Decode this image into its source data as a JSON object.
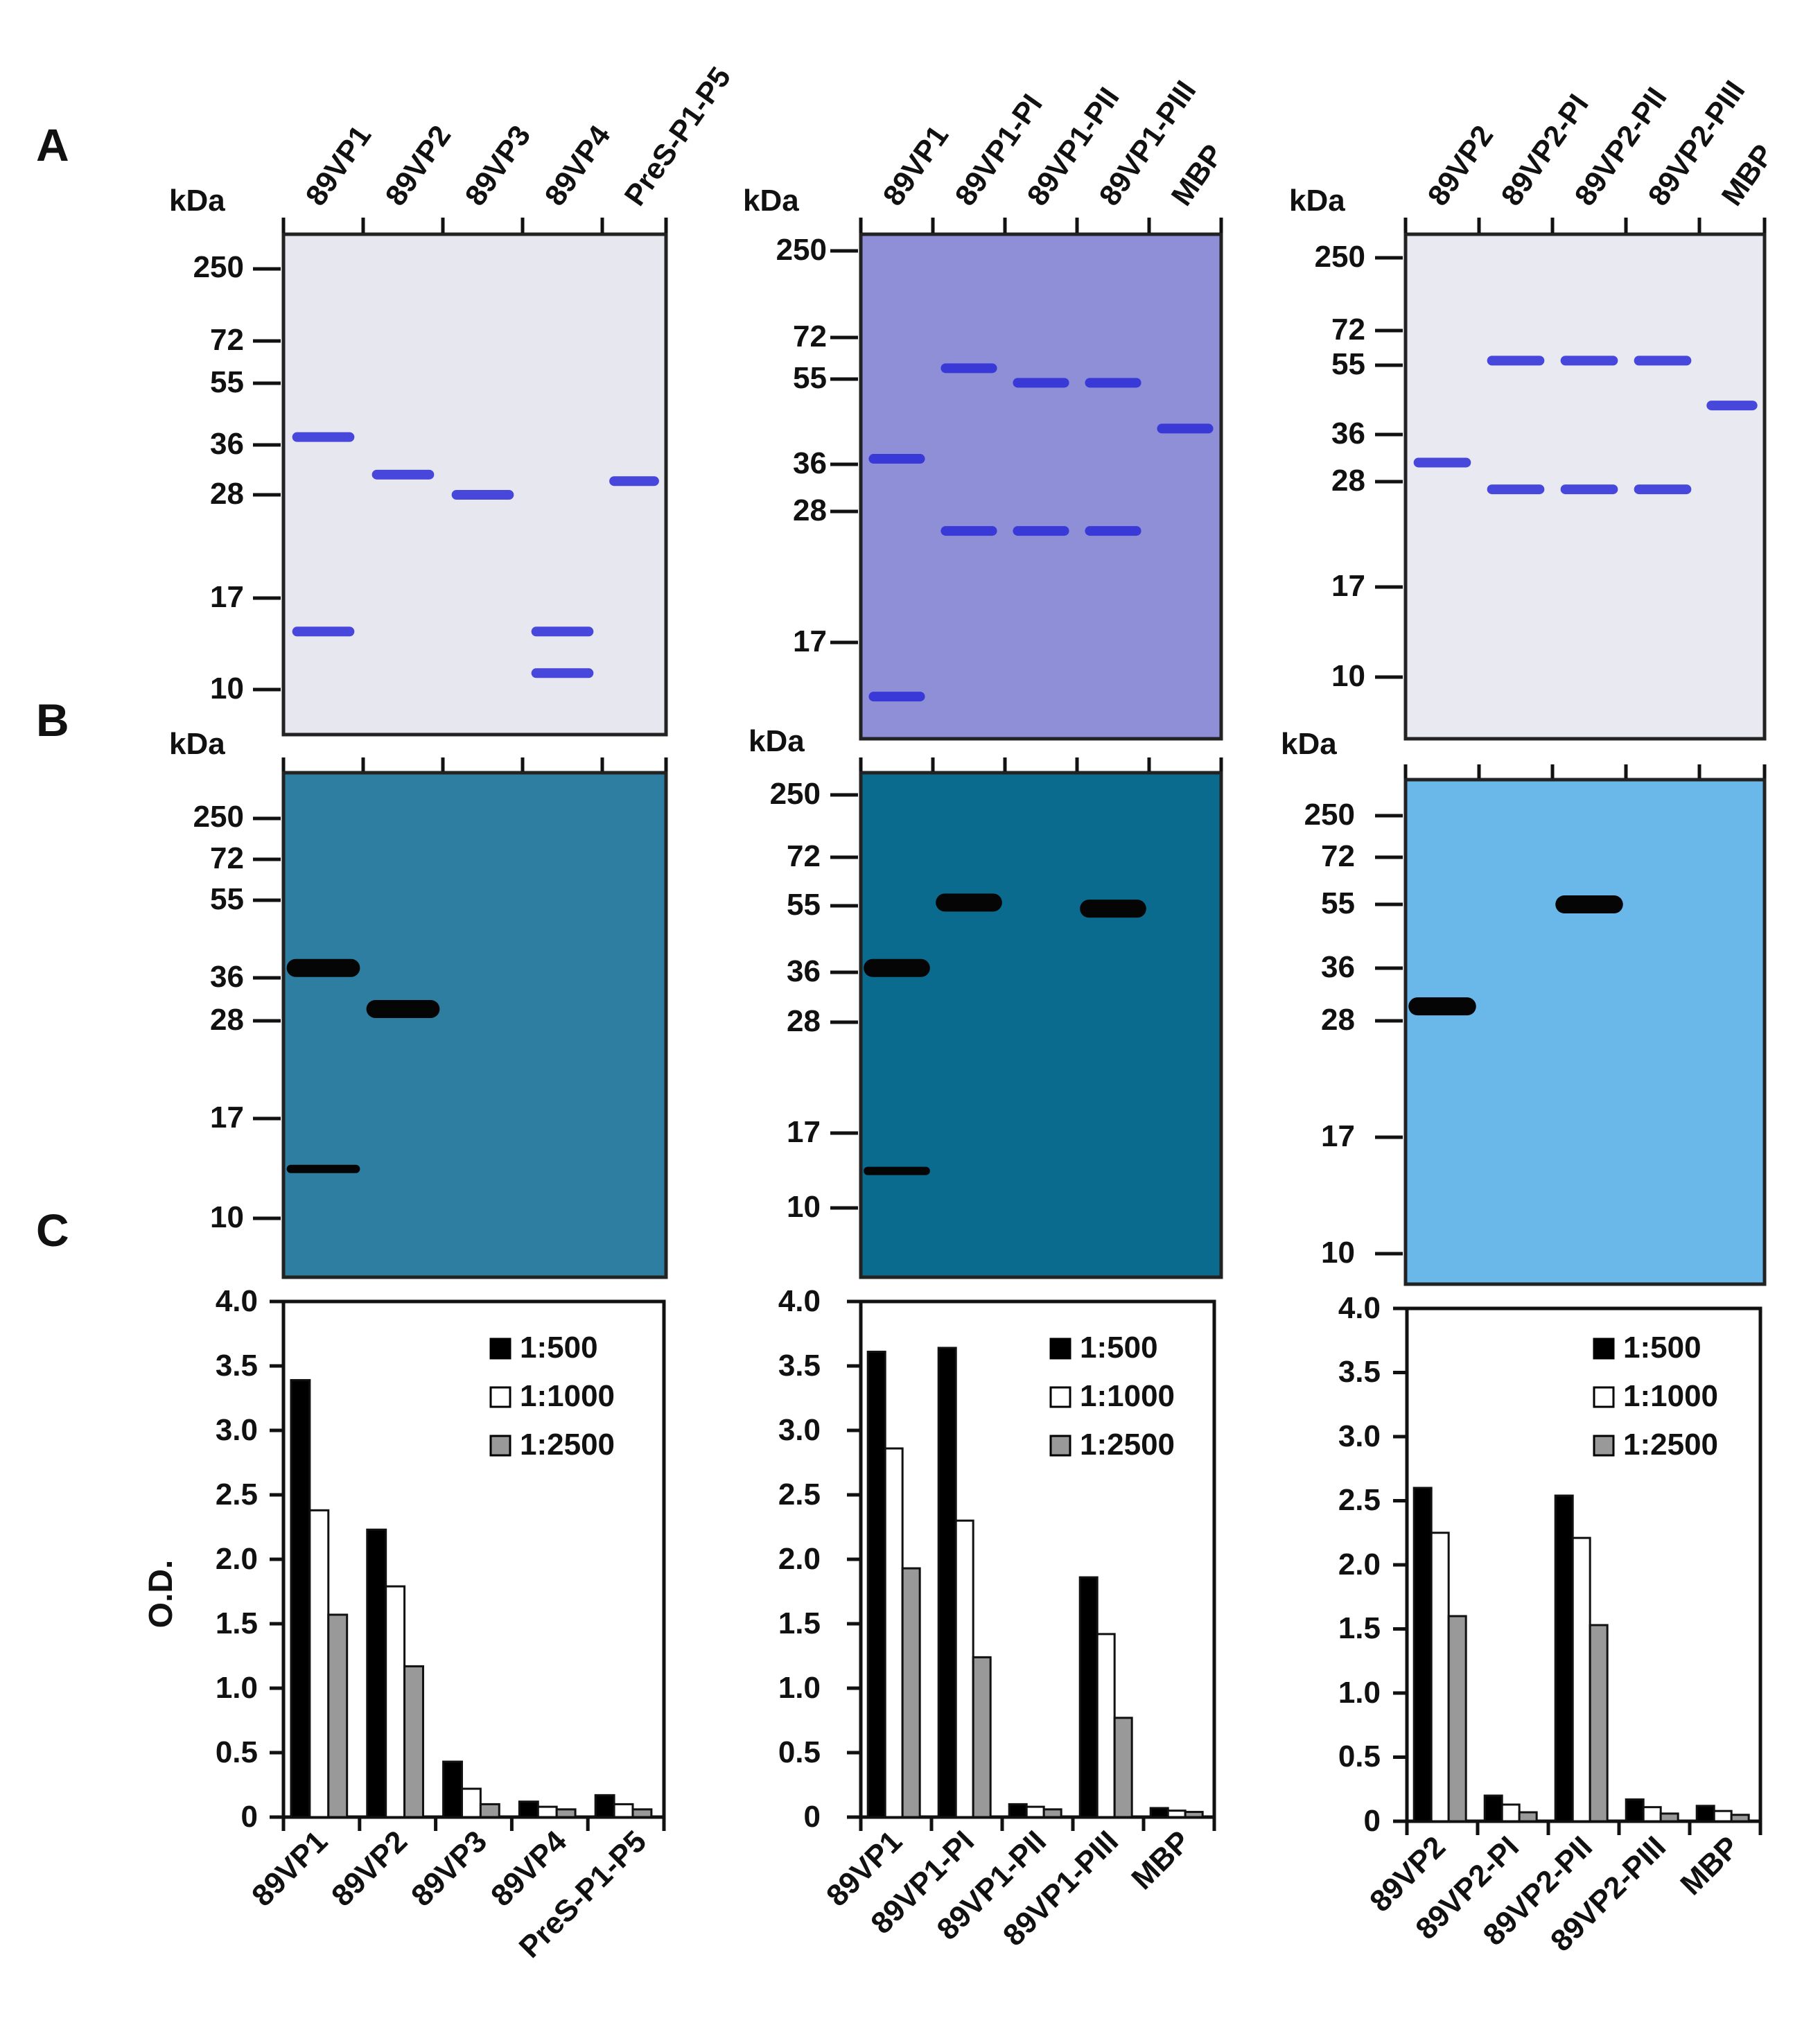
{
  "panel_labels": [
    "A",
    "B",
    "C"
  ],
  "kda_label": "kDa",
  "gels": [
    {
      "lanes": [
        "89VP1",
        "89VP2",
        "89VP3",
        "89VP4",
        "PreS-P1-P5"
      ],
      "coomassie_markers": [
        "250",
        "72",
        "55",
        "36",
        "28",
        "17",
        "10"
      ],
      "blot_markers": [
        "250",
        "72",
        "55",
        "36",
        "28",
        "17",
        "10"
      ],
      "coomassie_bg": "#e7e7ef",
      "blot_bg": "#2d7ea0",
      "coomassie_bands_kda": [
        {
          "lane": 1,
          "kda": 38
        },
        {
          "lane": 1,
          "kda": 14
        },
        {
          "lane": 2,
          "kda": 31
        },
        {
          "lane": 3,
          "kda": 28
        },
        {
          "lane": 4,
          "kda": 11
        },
        {
          "lane": 4,
          "kda": 14
        },
        {
          "lane": 5,
          "kda": 30
        }
      ],
      "blot_bands_kda": [
        {
          "lane": 1,
          "kda": 38
        },
        {
          "lane": 1,
          "kda": 13
        },
        {
          "lane": 2,
          "kda": 30
        }
      ]
    },
    {
      "lanes": [
        "89VP1",
        "89VP1-PI",
        "89VP1-PII",
        "89VP1-PIII",
        "MBP"
      ],
      "coomassie_markers": [
        "250",
        "72",
        "55",
        "36",
        "28",
        "17"
      ],
      "blot_markers": [
        "250",
        "72",
        "55",
        "36",
        "28",
        "17",
        "10"
      ],
      "coomassie_bg": "#8f8fd8",
      "blot_bg": "#0b6b8f",
      "coomassie_bands_kda": [
        {
          "lane": 1,
          "kda": 37
        },
        {
          "lane": 1,
          "kda": 12
        },
        {
          "lane": 2,
          "kda": 59
        },
        {
          "lane": 2,
          "kda": 26
        },
        {
          "lane": 3,
          "kda": 54
        },
        {
          "lane": 3,
          "kda": 26
        },
        {
          "lane": 4,
          "kda": 54
        },
        {
          "lane": 4,
          "kda": 26
        },
        {
          "lane": 5,
          "kda": 43
        }
      ],
      "blot_bands_kda": [
        {
          "lane": 1,
          "kda": 37
        },
        {
          "lane": 1,
          "kda": 13
        },
        {
          "lane": 2,
          "kda": 56
        },
        {
          "lane": 4,
          "kda": 54
        }
      ]
    },
    {
      "lanes": [
        "89VP2",
        "89VP2-PI",
        "89VP2-PII",
        "89VP2-PIII",
        "MBP"
      ],
      "coomassie_markers": [
        "250",
        "72",
        "55",
        "36",
        "28",
        "17",
        "10"
      ],
      "blot_markers": [
        "250",
        "72",
        "55",
        "36",
        "28",
        "17",
        "10"
      ],
      "coomassie_bg": "#e9e9f1",
      "blot_bg": "#6ab7ea",
      "coomassie_bands_kda": [
        {
          "lane": 1,
          "kda": 31
        },
        {
          "lane": 2,
          "kda": 57
        },
        {
          "lane": 2,
          "kda": 27
        },
        {
          "lane": 3,
          "kda": 57
        },
        {
          "lane": 3,
          "kda": 27
        },
        {
          "lane": 4,
          "kda": 57
        },
        {
          "lane": 4,
          "kda": 27
        },
        {
          "lane": 5,
          "kda": 43
        }
      ],
      "blot_bands_kda": [
        {
          "lane": 1,
          "kda": 30
        },
        {
          "lane": 3,
          "kda": 55
        }
      ]
    }
  ],
  "legend": [
    "1:500",
    "1:1000",
    "1:2500"
  ],
  "series_colors": [
    "#000000",
    "#ffffff",
    "#999999"
  ],
  "chart_data": [
    {
      "type": "bar",
      "ylabel": "O.D.",
      "ylim": [
        0,
        4.0
      ],
      "yticks": [
        "4.0",
        "3.5",
        "3.0",
        "2.5",
        "2.0",
        "1.5",
        "1.0",
        "0.5",
        "0"
      ],
      "legend_position": "top-right",
      "categories": [
        "89VP1",
        "89VP2",
        "89VP3",
        "89VP4",
        "PreS-P1-P5"
      ],
      "series": [
        {
          "name": "1:500",
          "values": [
            3.39,
            2.23,
            0.43,
            0.12,
            0.17
          ]
        },
        {
          "name": "1:1000",
          "values": [
            2.38,
            1.79,
            0.22,
            0.08,
            0.1
          ]
        },
        {
          "name": "1:2500",
          "values": [
            1.57,
            1.17,
            0.1,
            0.06,
            0.06
          ]
        }
      ]
    },
    {
      "type": "bar",
      "ylabel": "",
      "ylim": [
        0,
        4.0
      ],
      "yticks": [
        "4.0",
        "3.5",
        "3.0",
        "2.5",
        "2.0",
        "1.5",
        "1.0",
        "0.5",
        "0"
      ],
      "legend_position": "top-right",
      "categories": [
        "89VP1",
        "89VP1-PI",
        "89VP1-PII",
        "89VP1-PIII",
        "MBP"
      ],
      "series": [
        {
          "name": "1:500",
          "values": [
            3.61,
            3.64,
            0.1,
            1.86,
            0.07
          ]
        },
        {
          "name": "1:1000",
          "values": [
            2.86,
            2.3,
            0.08,
            1.42,
            0.05
          ]
        },
        {
          "name": "1:2500",
          "values": [
            1.93,
            1.24,
            0.06,
            0.77,
            0.04
          ]
        }
      ]
    },
    {
      "type": "bar",
      "ylabel": "",
      "ylim": [
        0,
        4.0
      ],
      "yticks": [
        "4.0",
        "3.5",
        "3.0",
        "2.5",
        "2.0",
        "1.5",
        "1.0",
        "0.5",
        "0"
      ],
      "legend_position": "top-right",
      "categories": [
        "89VP2",
        "89VP2-PI",
        "89VP2-PII",
        "89VP2-PIII",
        "MBP"
      ],
      "series": [
        {
          "name": "1:500",
          "values": [
            2.6,
            0.2,
            2.54,
            0.17,
            0.12
          ]
        },
        {
          "name": "1:1000",
          "values": [
            2.25,
            0.13,
            2.21,
            0.11,
            0.08
          ]
        },
        {
          "name": "1:2500",
          "values": [
            1.6,
            0.07,
            1.53,
            0.06,
            0.05
          ]
        }
      ]
    }
  ]
}
